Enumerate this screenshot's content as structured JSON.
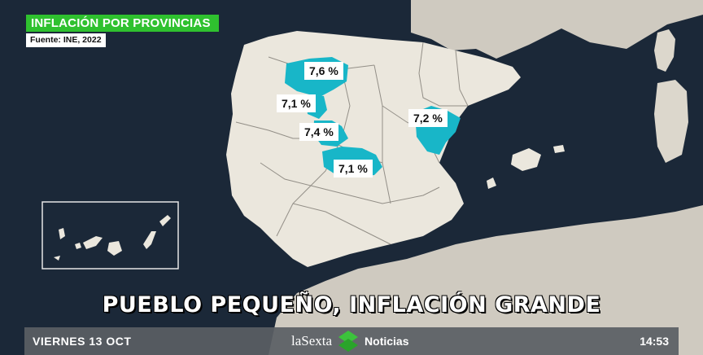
{
  "header": {
    "title": "INFLACIÓN POR PROVINCIAS",
    "source": "Fuente: INE, 2022"
  },
  "map": {
    "highlight_color": "#18b6c8",
    "land_color": "#ebe7dd",
    "sea_color": "#1b2838",
    "labels": [
      {
        "id": "label-1",
        "value": "7,6 %"
      },
      {
        "id": "label-2",
        "value": "7,1 %"
      },
      {
        "id": "label-3",
        "value": "7,4 %"
      },
      {
        "id": "label-4",
        "value": "7,1 %"
      },
      {
        "id": "label-5",
        "value": "7,2 %"
      }
    ]
  },
  "headline": "PUEBLO PEQUEÑO, INFLACIÓN GRANDE",
  "ticker": {
    "date": "VIERNES 13 OCT",
    "brand": "laSexta",
    "brand_sub": "Noticias",
    "time": "14:53",
    "brand_color": "#3cc33c"
  }
}
